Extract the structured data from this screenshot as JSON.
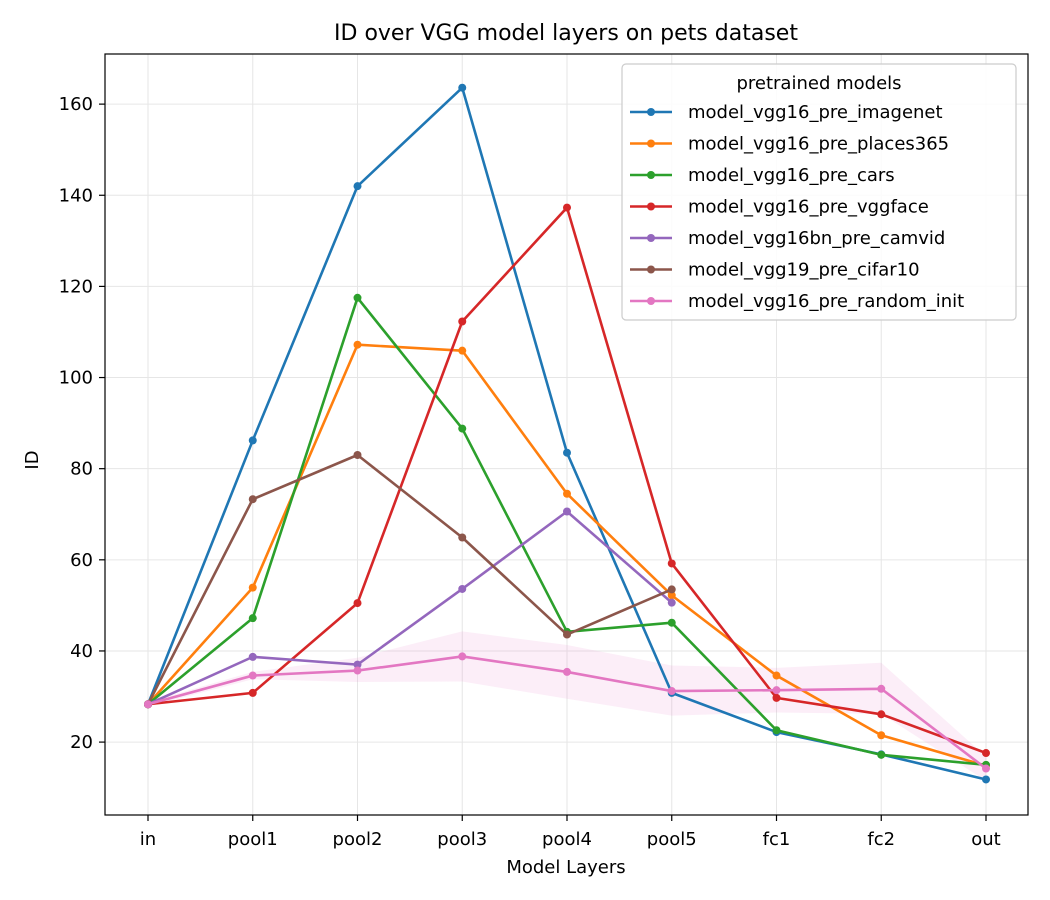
{
  "chart_data": {
    "type": "line",
    "title": "ID over VGG model layers on pets dataset",
    "xlabel": "Model Layers",
    "ylabel": "ID",
    "categories": [
      "in",
      "pool1",
      "pool2",
      "pool3",
      "pool4",
      "pool5",
      "fc1",
      "fc2",
      "out"
    ],
    "ylim": [
      4,
      171
    ],
    "yticks": [
      20,
      40,
      60,
      80,
      100,
      120,
      140,
      160
    ],
    "grid": true,
    "legend": {
      "title": "pretrained models",
      "placement": "top-right"
    },
    "series": [
      {
        "name": "model_vgg16_pre_imagenet",
        "color": "#1f77b4",
        "values": [
          28.3,
          86.2,
          142.0,
          163.6,
          83.5,
          30.8,
          22.2,
          17.3,
          11.8
        ]
      },
      {
        "name": "model_vgg16_pre_places365",
        "color": "#ff7f0e",
        "values": [
          28.3,
          53.9,
          107.2,
          105.9,
          74.5,
          52.2,
          34.6,
          21.5,
          14.8
        ]
      },
      {
        "name": "model_vgg16_pre_cars",
        "color": "#2ca02c",
        "values": [
          28.3,
          47.2,
          117.5,
          88.8,
          44.2,
          46.2,
          22.6,
          17.2,
          15.0
        ]
      },
      {
        "name": "model_vgg16_pre_vggface",
        "color": "#d62728",
        "values": [
          28.3,
          30.8,
          50.5,
          112.3,
          137.3,
          59.2,
          29.7,
          26.1,
          17.6
        ]
      },
      {
        "name": "model_vgg16bn_pre_camvid",
        "color": "#9467bd",
        "values": [
          28.3,
          38.7,
          37.0,
          53.6,
          70.6,
          50.6,
          null,
          null,
          null
        ]
      },
      {
        "name": "model_vgg19_pre_cifar10",
        "color": "#8c564b",
        "values": [
          28.3,
          73.3,
          83.0,
          64.9,
          43.6,
          53.5,
          null,
          null,
          null
        ]
      },
      {
        "name": "model_vgg16_pre_random_init",
        "color": "#e377c2",
        "values": [
          28.3,
          34.6,
          35.7,
          38.8,
          35.4,
          31.2,
          31.4,
          31.7,
          14.2
        ],
        "band_lower": [
          27.8,
          33.8,
          33.2,
          33.3,
          29.5,
          25.8,
          26.5,
          26.2,
          11.5
        ],
        "band_upper": [
          28.8,
          35.4,
          38.5,
          44.3,
          41.3,
          36.8,
          36.3,
          37.4,
          16.8
        ]
      }
    ]
  }
}
